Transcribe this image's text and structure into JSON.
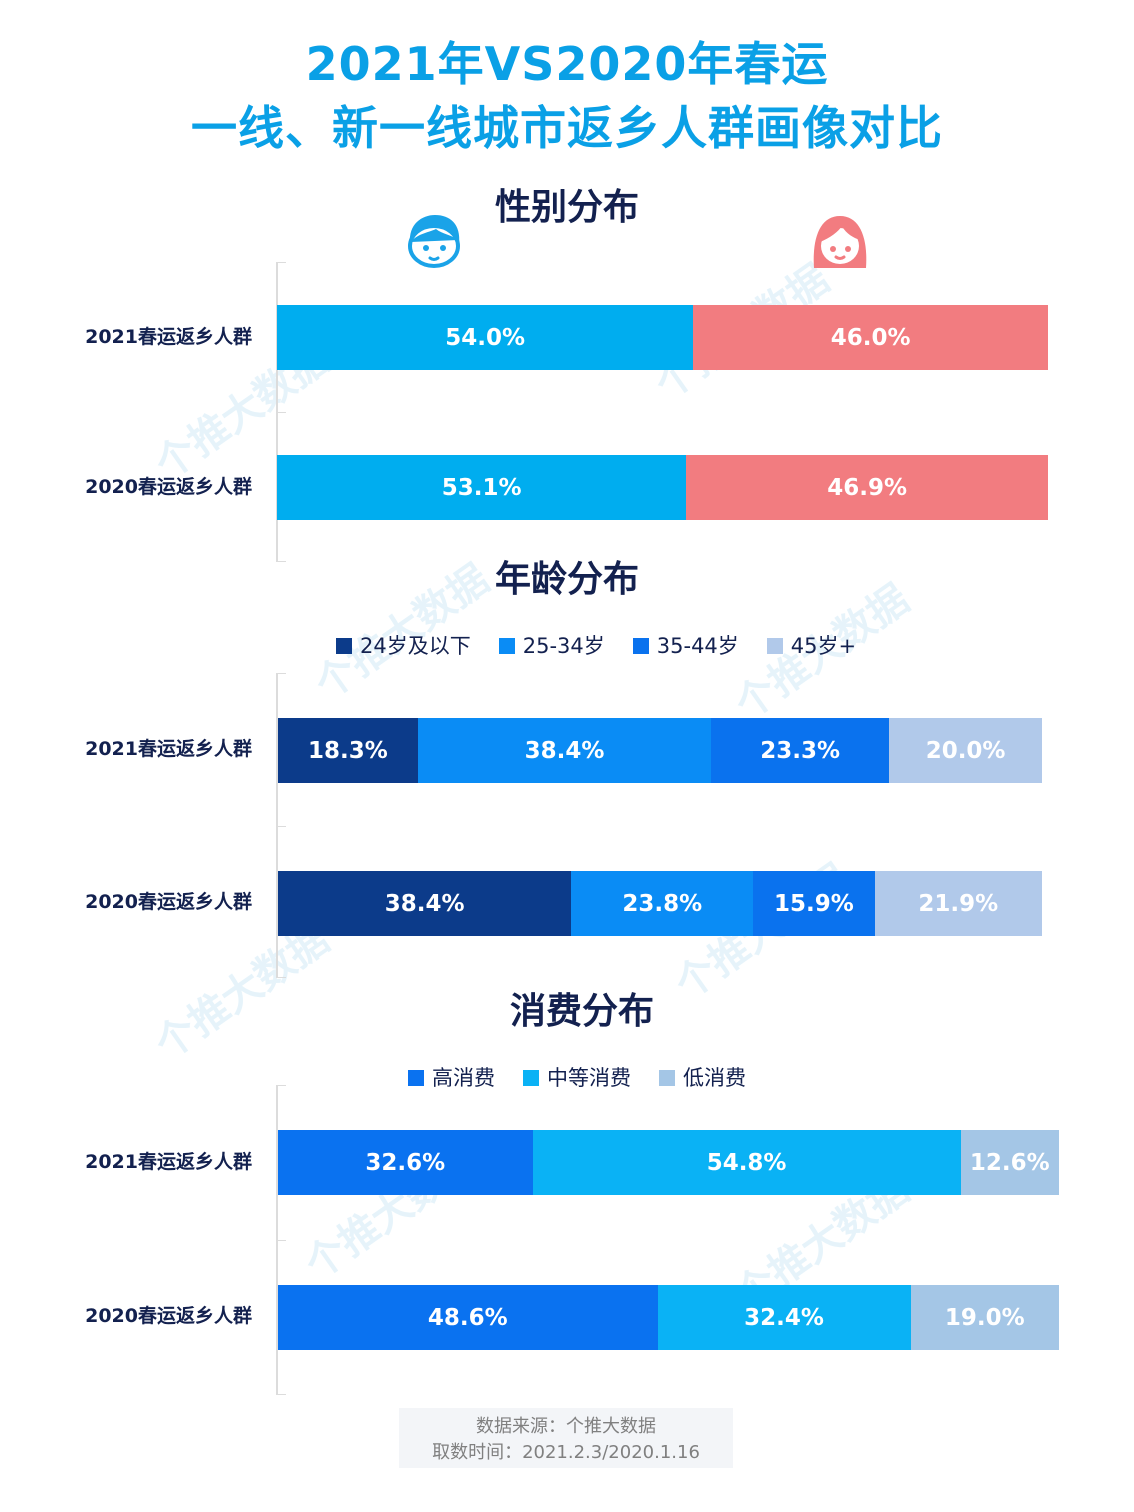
{
  "title": {
    "line1": "2021年VS2020年春运",
    "line2": "一线、新一线城市返乡人群画像对比"
  },
  "watermark_text": "个推大数据",
  "icons": {
    "male": "boy-face-icon",
    "female": "girl-face-icon"
  },
  "colors": {
    "title": "#0aa0e6",
    "heading": "#13214f",
    "male": "#00adef",
    "female": "#f27c80",
    "age_24_below": "#0c3b8a",
    "age_25_34": "#0a8cf5",
    "age_35_44": "#0a72ee",
    "age_45_plus": "#b1c9ea",
    "spend_high": "#0a72f0",
    "spend_mid": "#0ab2f5",
    "spend_low": "#a4c6e6"
  },
  "chart_data": [
    {
      "type": "bar",
      "stacked": true,
      "orientation": "horizontal",
      "title": "性别分布",
      "categories": [
        "2021春运返乡人群",
        "2020春运返乡人群"
      ],
      "series": [
        {
          "values": [
            54.0,
            53.1
          ],
          "labels": [
            "54.0%",
            "53.1%"
          ]
        },
        {
          "values": [
            46.0,
            46.9
          ],
          "labels": [
            "46.0%",
            "46.9%"
          ]
        }
      ]
    },
    {
      "type": "bar",
      "stacked": true,
      "orientation": "horizontal",
      "title": "年龄分布",
      "categories": [
        "2021春运返乡人群",
        "2020春运返乡人群"
      ],
      "series": [
        {
          "name": "24岁及以下",
          "values": [
            18.3,
            38.4
          ],
          "labels": [
            "18.3%",
            "38.4%"
          ]
        },
        {
          "name": "25-34岁",
          "values": [
            38.4,
            23.8
          ],
          "labels": [
            "38.4%",
            "23.8%"
          ]
        },
        {
          "name": "35-44岁",
          "values": [
            23.3,
            15.9
          ],
          "labels": [
            "23.3%",
            "15.9%"
          ]
        },
        {
          "name": "45岁+",
          "values": [
            20.0,
            21.9
          ],
          "labels": [
            "20.0%",
            "21.9%"
          ]
        }
      ],
      "legend": "top"
    },
    {
      "type": "bar",
      "stacked": true,
      "orientation": "horizontal",
      "title": "消费分布",
      "categories": [
        "2021春运返乡人群",
        "2020春运返乡人群"
      ],
      "series": [
        {
          "name": "高消费",
          "values": [
            32.6,
            48.6
          ],
          "labels": [
            "32.6%",
            "48.6%"
          ]
        },
        {
          "name": "中等消费",
          "values": [
            54.8,
            32.4
          ],
          "labels": [
            "54.8%",
            "32.4%"
          ]
        },
        {
          "name": "低消费",
          "values": [
            12.6,
            19.0
          ],
          "labels": [
            "12.6%",
            "19.0%"
          ]
        }
      ],
      "legend": "top"
    }
  ],
  "footer": {
    "source": "数据来源：个推大数据",
    "time": "取数时间：2021.2.3/2020.1.16"
  }
}
